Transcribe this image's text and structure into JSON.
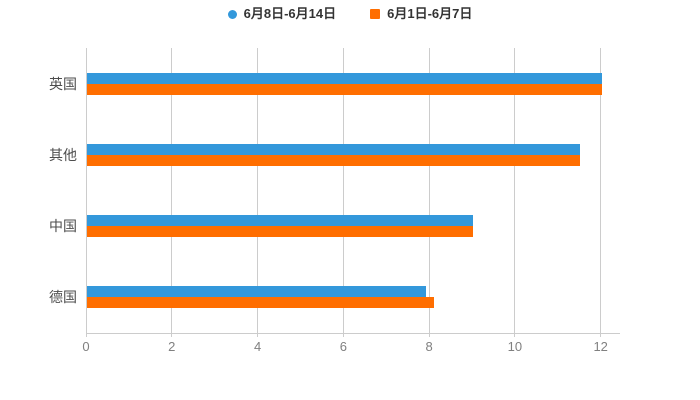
{
  "chart_data": {
    "type": "bar",
    "orientation": "horizontal",
    "title": "",
    "xlabel": "",
    "ylabel": "",
    "categories": [
      "英国",
      "其他",
      "中国",
      "德国"
    ],
    "series": [
      {
        "name": "6月8日-6月14日",
        "marker": "circle",
        "color": "#3398db",
        "values": [
          12,
          11.5,
          9,
          7.9
        ]
      },
      {
        "name": "6月1日-6月7日",
        "marker": "square",
        "color": "#ff6e00",
        "values": [
          12,
          11.5,
          9,
          8.1
        ]
      }
    ],
    "x_ticks": [
      0,
      2,
      4,
      6,
      8,
      10,
      12
    ],
    "xlim": [
      0,
      12.45
    ],
    "grid": "vertical-lines",
    "legend_position": "top-center",
    "colors": {
      "background": "#ffffff",
      "grid_line": "#cccccc",
      "axis_line": "#cccccc",
      "tick_label": "#808080",
      "category_label": "#4d4d4d",
      "legend_text": "#333333"
    }
  }
}
